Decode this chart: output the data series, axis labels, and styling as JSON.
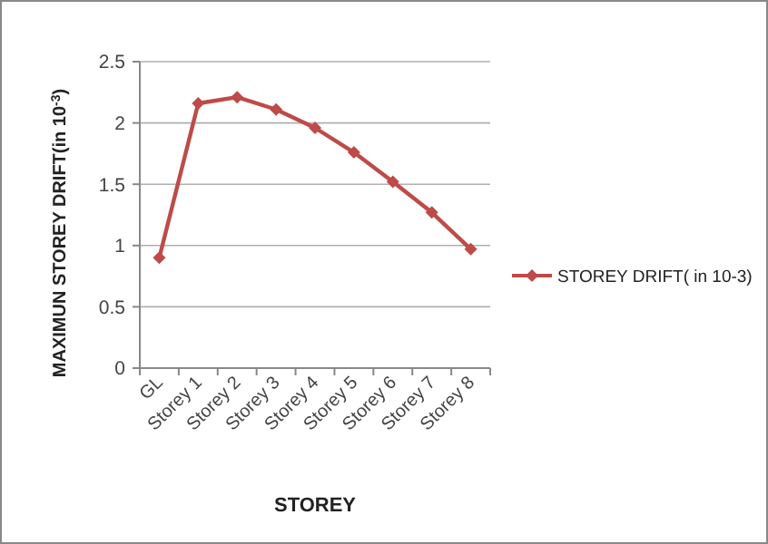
{
  "chart_data": {
    "type": "line",
    "xlabel": "STOREY",
    "ylabel": "MAXIMUN STOREY DRIFT(in 10$^{-3}$)",
    "categories": [
      "GL",
      "Storey 1",
      "Storey 2",
      "Storey 3",
      "Storey 4",
      "Storey 5",
      "Storey 6",
      "Storey 7",
      "Storey 8"
    ],
    "series": [
      {
        "name": "STOREY DRIFT( in 10-3)",
        "color": "#be4b48",
        "values": [
          0.9,
          2.16,
          2.21,
          2.11,
          1.96,
          1.76,
          1.52,
          1.27,
          0.97
        ]
      }
    ],
    "ylim": [
      0,
      2.5
    ],
    "yticks": [
      0,
      0.5,
      1,
      1.5,
      2,
      2.5
    ],
    "grid": "y",
    "legend": "right",
    "marker": "diamond",
    "line_style": "solid"
  }
}
